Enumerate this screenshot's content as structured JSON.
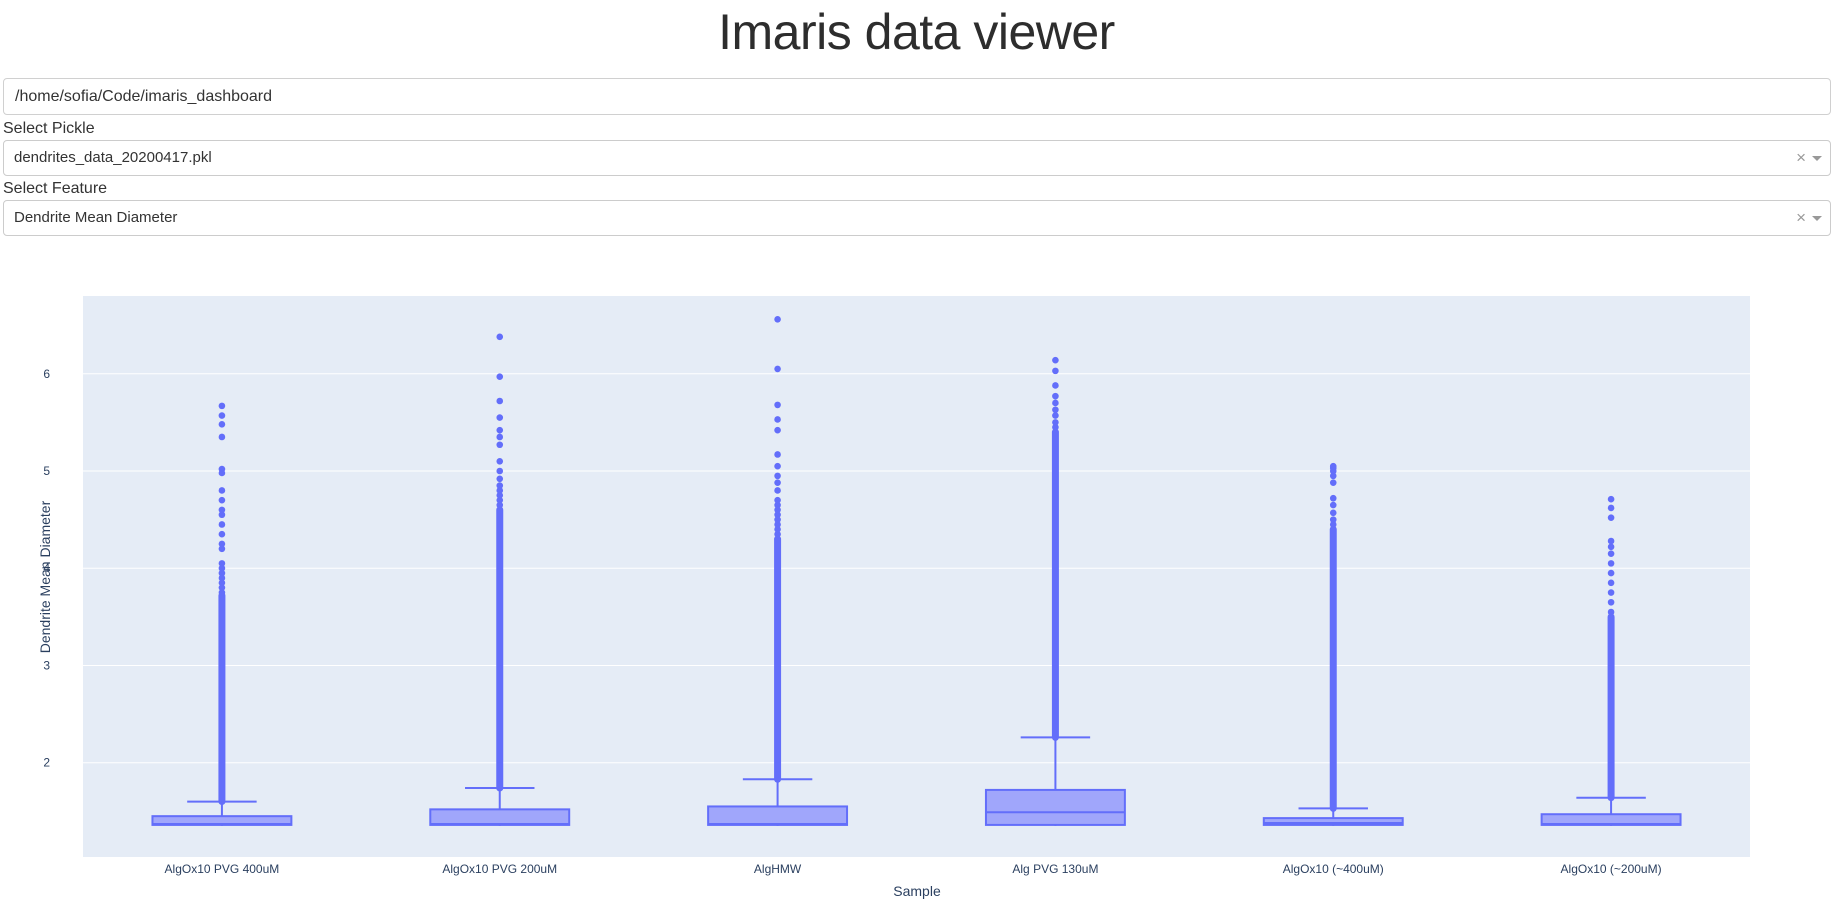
{
  "page": {
    "title": "Imaris data viewer"
  },
  "path_input": {
    "value": "/home/sofia/Code/imaris_dashboard"
  },
  "pickle_select": {
    "label": "Select Pickle",
    "value": "dendrites_data_20200417.pkl",
    "clear_glyph": "×"
  },
  "feature_select": {
    "label": "Select Feature",
    "value": "Dendrite Mean Diameter",
    "clear_glyph": "×"
  },
  "colors": {
    "box_line": "#636efa",
    "box_fill": "#a0a6fb",
    "plot_bg": "#e5ecf6",
    "grid": "#ffffff",
    "axis_text": "#2a3f5f"
  },
  "chart_data": {
    "type": "box",
    "xlabel": "Sample",
    "ylabel": "Dendrite Mean Diameter",
    "ylim": [
      1.03,
      6.8
    ],
    "yticks": [
      2,
      3,
      4,
      5,
      6
    ],
    "grid": true,
    "categories": [
      "AlgOx10 PVG 400uM",
      "AlgOx10 PVG 200uM",
      "AlgHMW",
      "Alg PVG 130uM",
      "AlgOx10 (~400uM)",
      "AlgOx10 (~200uM)"
    ],
    "boxes": [
      {
        "min": 1.35,
        "q1": 1.36,
        "median": 1.37,
        "q3": 1.45,
        "upper_fence": 1.6,
        "outliers_dense_to": 3.72,
        "outliers": [
          3.75,
          3.8,
          3.85,
          3.9,
          3.95,
          4.0,
          4.05,
          4.2,
          4.25,
          4.35,
          4.45,
          4.55,
          4.6,
          4.7,
          4.8,
          4.98,
          5.02,
          5.35,
          5.48,
          5.57,
          5.67
        ]
      },
      {
        "min": 1.35,
        "q1": 1.36,
        "median": 1.37,
        "q3": 1.52,
        "upper_fence": 1.74,
        "outliers_dense_to": 4.6,
        "outliers": [
          4.65,
          4.7,
          4.75,
          4.8,
          4.85,
          4.92,
          5.0,
          5.1,
          5.27,
          5.35,
          5.42,
          5.55,
          5.72,
          5.97,
          6.38
        ]
      },
      {
        "min": 1.35,
        "q1": 1.36,
        "median": 1.37,
        "q3": 1.55,
        "upper_fence": 1.83,
        "outliers_dense_to": 4.3,
        "outliers": [
          4.35,
          4.4,
          4.45,
          4.5,
          4.55,
          4.6,
          4.65,
          4.7,
          4.8,
          4.88,
          4.95,
          5.05,
          5.17,
          5.42,
          5.53,
          5.68,
          6.05,
          6.56
        ]
      },
      {
        "min": 1.35,
        "q1": 1.36,
        "median": 1.49,
        "q3": 1.72,
        "upper_fence": 2.26,
        "outliers_dense_to": 5.4,
        "outliers": [
          5.45,
          5.5,
          5.57,
          5.63,
          5.7,
          5.77,
          5.88,
          6.03,
          6.14
        ]
      },
      {
        "min": 1.35,
        "q1": 1.36,
        "median": 1.38,
        "q3": 1.43,
        "upper_fence": 1.53,
        "outliers_dense_to": 4.4,
        "outliers": [
          4.45,
          4.5,
          4.57,
          4.65,
          4.72,
          4.88,
          4.95,
          5.0,
          5.03,
          5.05
        ]
      },
      {
        "min": 1.35,
        "q1": 1.36,
        "median": 1.37,
        "q3": 1.47,
        "upper_fence": 1.64,
        "outliers_dense_to": 3.5,
        "outliers": [
          3.55,
          3.65,
          3.75,
          3.85,
          3.95,
          4.05,
          4.15,
          4.22,
          4.28,
          4.52,
          4.62,
          4.71
        ]
      }
    ]
  }
}
